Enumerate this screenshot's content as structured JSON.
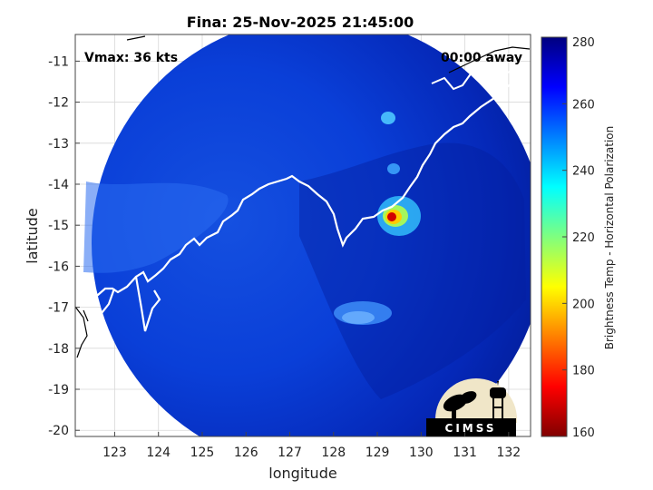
{
  "chart_data": {
    "type": "heatmap",
    "title": "Fina: 25-Nov-2025 21:45:00",
    "xlabel": "longitude",
    "ylabel": "latitude",
    "xlim": [
      122.1,
      132.5
    ],
    "ylim": [
      -20.15,
      -10.35
    ],
    "xticks": [
      "123",
      "124",
      "125",
      "126",
      "127",
      "128",
      "129",
      "130",
      "131",
      "132"
    ],
    "yticks": [
      "-11",
      "-12",
      "-13",
      "-14",
      "-15",
      "-16",
      "-17",
      "-18",
      "-19",
      "-20"
    ],
    "grid": true,
    "annotations": {
      "vmax": "Vmax: 36 kts",
      "away": "00:00 away"
    },
    "colorbar": {
      "label": "Brightness Temp - Horizontal Polarization",
      "range": [
        160,
        280
      ],
      "ticks": [
        "280",
        "260",
        "240",
        "220",
        "200",
        "180",
        "160"
      ],
      "colormap": "jet"
    },
    "swath": {
      "center": [
        127.5,
        -15.0
      ],
      "radius_deg": 5.0,
      "background_value": 270
    },
    "features": [
      {
        "lon": 129.3,
        "lat": -14.7,
        "value": 185
      },
      {
        "lon": 129.5,
        "lat": -14.6,
        "value": 225
      },
      {
        "lon": 129.6,
        "lat": -14.3,
        "value": 245
      },
      {
        "lon": 129.2,
        "lat": -12.2,
        "value": 248
      },
      {
        "lon": 129.0,
        "lat": -13.6,
        "value": 250
      },
      {
        "lon": 128.7,
        "lat": -17.1,
        "value": 248
      },
      {
        "lon": 128.2,
        "lat": -17.0,
        "value": 252
      },
      {
        "lon": 124.5,
        "lat": -15.0,
        "value": 255
      },
      {
        "lon": 123.5,
        "lat": -15.5,
        "value": 256
      },
      {
        "lon": 128.9,
        "lat": -16.2,
        "value": 258
      }
    ],
    "colors": {
      "jet_dark_red": "#800000",
      "jet_red": "#ff0000",
      "jet_yellow": "#ffff00",
      "jet_cyan": "#00ffff",
      "jet_blue": "#0000ff",
      "jet_dark_blue": "#00007f"
    }
  },
  "logo": {
    "text": "CIMSS"
  }
}
